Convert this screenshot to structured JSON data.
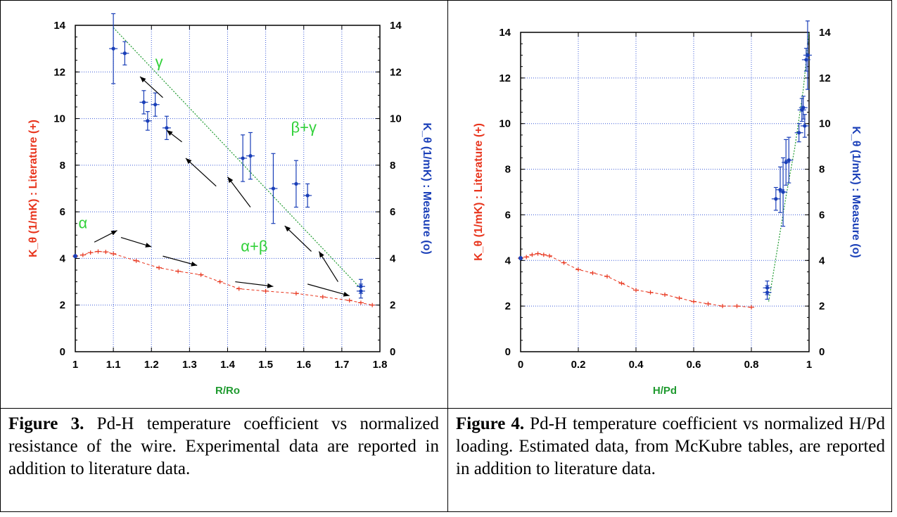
{
  "chart_data": [
    {
      "type": "scatter",
      "xlabel": "R/Ro",
      "ylabel_left": "K_θ (1/mK) : Literature (+)",
      "ylabel_right": "K_θ (1/mK) : Measure (o)",
      "xlim": [
        1,
        1.8
      ],
      "ylim": [
        0,
        14
      ],
      "x_ticks": [
        "1",
        "1.1",
        "1.2",
        "1.3",
        "1.4",
        "1.5",
        "1.6",
        "1.7",
        "1.8"
      ],
      "y_ticks": [
        "0",
        "2",
        "4",
        "6",
        "8",
        "10",
        "12",
        "14"
      ],
      "grid": true,
      "series": [
        {
          "name": "Literature (+)",
          "color": "#e8341c",
          "x": [
            1.0,
            1.02,
            1.04,
            1.06,
            1.08,
            1.1,
            1.16,
            1.22,
            1.27,
            1.33,
            1.38,
            1.43,
            1.5,
            1.58,
            1.65,
            1.72,
            1.75,
            1.78
          ],
          "y": [
            4.1,
            4.15,
            4.25,
            4.3,
            4.28,
            4.2,
            3.9,
            3.6,
            3.45,
            3.3,
            3.0,
            2.7,
            2.6,
            2.5,
            2.35,
            2.2,
            2.1,
            2.0
          ]
        },
        {
          "name": "Measure (o)",
          "color": "#1a3fb8",
          "x": [
            1.1,
            1.13,
            1.18,
            1.19,
            1.21,
            1.24,
            1.44,
            1.46,
            1.52,
            1.58,
            1.61,
            1.75,
            1.75
          ],
          "y": [
            13.0,
            12.8,
            10.7,
            9.9,
            10.6,
            9.6,
            8.3,
            8.4,
            7.0,
            7.2,
            6.7,
            2.8,
            2.6
          ],
          "err": [
            1.5,
            0.5,
            0.5,
            0.4,
            0.5,
            0.5,
            1.0,
            1.0,
            1.5,
            1.0,
            0.5,
            0.3,
            0.3
          ]
        }
      ],
      "phase_labels": [
        {
          "text": "γ",
          "x": 1.22,
          "y": 12.2
        },
        {
          "text": "β+γ",
          "x": 1.6,
          "y": 9.4
        },
        {
          "text": "α",
          "x": 1.02,
          "y": 5.3
        },
        {
          "text": "α+β",
          "x": 1.47,
          "y": 4.3
        }
      ],
      "dotted_line": {
        "x": [
          1.1,
          1.75
        ],
        "y": [
          13.9,
          2.7
        ],
        "color": "#1f9a2f"
      }
    },
    {
      "type": "scatter",
      "xlabel": "H/Pd",
      "ylabel_left": "K_θ (1/mK) : Literature (+)",
      "ylabel_right": "K_θ (1/mK) : Measure (o)",
      "xlim": [
        0,
        1
      ],
      "ylim": [
        0,
        14
      ],
      "x_ticks": [
        "0",
        "0.2",
        "0.4",
        "0.6",
        "0.8",
        "1"
      ],
      "y_ticks": [
        "0",
        "2",
        "4",
        "6",
        "8",
        "10",
        "12",
        "14"
      ],
      "grid": true,
      "series": [
        {
          "name": "Literature (+)",
          "color": "#e8341c",
          "x": [
            0.0,
            0.02,
            0.04,
            0.06,
            0.08,
            0.1,
            0.15,
            0.2,
            0.25,
            0.3,
            0.35,
            0.4,
            0.45,
            0.5,
            0.55,
            0.6,
            0.65,
            0.7,
            0.75,
            0.8
          ],
          "y": [
            4.1,
            4.15,
            4.25,
            4.3,
            4.25,
            4.2,
            3.9,
            3.6,
            3.45,
            3.3,
            3.0,
            2.7,
            2.6,
            2.5,
            2.35,
            2.2,
            2.1,
            2.0,
            2.0,
            1.95
          ]
        },
        {
          "name": "Measure (o)",
          "color": "#1a3fb8",
          "x": [
            0.855,
            0.855,
            0.885,
            0.9,
            0.91,
            0.92,
            0.93,
            0.965,
            0.975,
            0.98,
            0.985,
            0.99,
            0.995
          ],
          "y": [
            2.8,
            2.6,
            6.7,
            7.1,
            7.0,
            8.3,
            8.4,
            9.6,
            10.6,
            10.7,
            9.9,
            12.8,
            13.0
          ],
          "err": [
            0.3,
            0.3,
            0.5,
            1.0,
            1.5,
            1.0,
            1.0,
            0.4,
            0.5,
            0.5,
            0.5,
            0.5,
            1.5
          ]
        }
      ],
      "dotted_line": {
        "x": [
          0.86,
          0.89,
          0.92,
          0.95,
          0.98,
          1.0
        ],
        "y": [
          2.2,
          4.5,
          6.8,
          8.9,
          11.5,
          14.0
        ],
        "color": "#1f9a2f"
      }
    }
  ],
  "captions": {
    "fig3_label": "Figure 3.",
    "fig3_text": " Pd-H temperature coefficient vs normalized resistance of the wire. Experimental data are reported in addition to literature data.",
    "fig4_label": "Figure 4.",
    "fig4_text": " Pd-H temperature coefficient vs normalized H/Pd loading. Estimated data, from McKubre tables, are reported in addition to literature data."
  },
  "colors": {
    "axis_label_green": "#1f9a2f",
    "left_label_red": "#e8341c",
    "right_label_blue": "#1a3fb8",
    "grid": "#3b5bd8"
  }
}
